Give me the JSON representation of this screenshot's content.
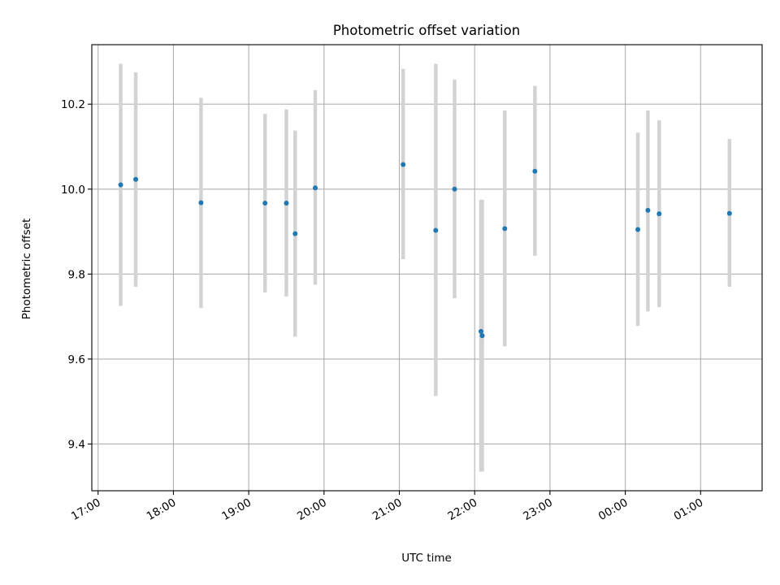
{
  "chart_data": {
    "type": "scatter",
    "title": "Photometric offset variation",
    "xlabel": "UTC time",
    "ylabel": "Photometric offset",
    "x_tick_labels": [
      "17:00",
      "18:00",
      "19:00",
      "20:00",
      "21:00",
      "22:00",
      "23:00",
      "00:00",
      "01:00"
    ],
    "y_tick_labels": [
      "9.4",
      "9.6",
      "9.8",
      "10.0",
      "10.2"
    ],
    "y_ticks": [
      9.4,
      9.6,
      9.8,
      10.0,
      10.2
    ],
    "xlim": [
      "16:55",
      "01:49"
    ],
    "ylim": [
      9.29,
      10.34
    ],
    "grid": true,
    "marker_color": "#1f77b4",
    "errorbar_color": "#d3d3d3",
    "points": [
      {
        "time": "17:18",
        "y": 10.01,
        "low": 9.725,
        "high": 10.295
      },
      {
        "time": "17:30",
        "y": 10.023,
        "low": 9.77,
        "high": 10.275
      },
      {
        "time": "18:22",
        "y": 9.968,
        "low": 9.72,
        "high": 10.215
      },
      {
        "time": "19:13",
        "y": 9.967,
        "low": 9.757,
        "high": 10.177
      },
      {
        "time": "19:30",
        "y": 9.967,
        "low": 9.747,
        "high": 10.188
      },
      {
        "time": "19:37",
        "y": 9.895,
        "low": 9.653,
        "high": 10.138
      },
      {
        "time": "19:53",
        "y": 10.003,
        "low": 9.775,
        "high": 10.233
      },
      {
        "time": "21:03",
        "y": 10.058,
        "low": 9.835,
        "high": 10.283
      },
      {
        "time": "21:29",
        "y": 9.903,
        "low": 9.513,
        "high": 10.295
      },
      {
        "time": "21:44",
        "y": 10.0,
        "low": 9.743,
        "high": 10.258
      },
      {
        "time": "22:05",
        "y": 9.665,
        "low": 9.335,
        "high": 9.975
      },
      {
        "time": "22:06",
        "y": 9.655,
        "low": 9.335,
        "high": 9.975
      },
      {
        "time": "22:24",
        "y": 9.907,
        "low": 9.63,
        "high": 10.185
      },
      {
        "time": "22:48",
        "y": 10.042,
        "low": 9.843,
        "high": 10.243
      },
      {
        "time": "00:10",
        "y": 9.905,
        "low": 9.678,
        "high": 10.133
      },
      {
        "time": "00:18",
        "y": 9.95,
        "low": 9.712,
        "high": 10.185
      },
      {
        "time": "00:27",
        "y": 9.942,
        "low": 9.722,
        "high": 10.162
      },
      {
        "time": "01:23",
        "y": 9.943,
        "low": 9.77,
        "high": 10.118
      }
    ]
  }
}
